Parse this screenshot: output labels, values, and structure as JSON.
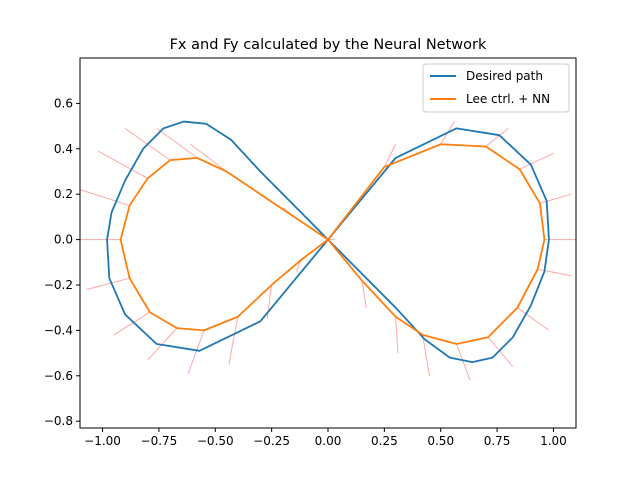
{
  "chart_data": {
    "type": "line",
    "title": "Fx and Fy calculated by the Neural Network",
    "xlabel": "",
    "ylabel": "",
    "xlim": [
      -1.1,
      1.1
    ],
    "ylim": [
      -0.83,
      0.8
    ],
    "xticks": [
      -1.0,
      -0.75,
      -0.5,
      -0.25,
      0.0,
      0.25,
      0.5,
      0.75,
      1.0
    ],
    "xtick_labels": [
      "−1.00",
      "−0.75",
      "−0.50",
      "−0.25",
      "0.00",
      "0.25",
      "0.50",
      "0.75",
      "1.00"
    ],
    "yticks": [
      0.6,
      0.4,
      0.2,
      0.0,
      -0.2,
      -0.4,
      -0.6,
      -0.8
    ],
    "ytick_labels": [
      "0.6",
      "0.4",
      "0.2",
      "0.0",
      "−0.2",
      "−0.4",
      "−0.6",
      "−0.8"
    ],
    "grid": false,
    "legend_position": "top-right",
    "series": [
      {
        "name": "Desired path",
        "color": "#1f77b4",
        "x": [
          0.0,
          0.3,
          0.57,
          0.76,
          0.9,
          0.97,
          0.98,
          0.96,
          0.9,
          0.82,
          0.73,
          0.64,
          0.54,
          0.43,
          0.3,
          0.15,
          0.0,
          -0.15,
          -0.3,
          -0.43,
          -0.54,
          -0.64,
          -0.73,
          -0.82,
          -0.9,
          -0.96,
          -0.98,
          -0.97,
          -0.9,
          -0.76,
          -0.57,
          -0.3,
          0.0
        ],
        "y": [
          0.0,
          0.36,
          0.49,
          0.46,
          0.33,
          0.17,
          0.0,
          -0.14,
          -0.29,
          -0.43,
          -0.52,
          -0.54,
          -0.52,
          -0.44,
          -0.3,
          -0.15,
          0.0,
          0.15,
          0.3,
          0.44,
          0.51,
          0.52,
          0.49,
          0.4,
          0.26,
          0.12,
          0.0,
          -0.17,
          -0.33,
          -0.46,
          -0.49,
          -0.36,
          0.0
        ]
      },
      {
        "name": "Lee ctrl. + NN",
        "color": "#ff7f0e",
        "x": [
          0.0,
          0.25,
          0.5,
          0.7,
          0.85,
          0.94,
          0.96,
          0.93,
          0.84,
          0.71,
          0.57,
          0.42,
          0.3,
          0.15,
          0.0,
          -0.15,
          -0.3,
          -0.45,
          -0.58,
          -0.7,
          -0.8,
          -0.88,
          -0.92,
          -0.88,
          -0.79,
          -0.67,
          -0.55,
          -0.4,
          -0.25,
          -0.12,
          0.0
        ],
        "y": [
          0.0,
          0.32,
          0.42,
          0.41,
          0.31,
          0.16,
          0.0,
          -0.13,
          -0.3,
          -0.43,
          -0.46,
          -0.42,
          -0.34,
          -0.18,
          0.0,
          0.1,
          0.2,
          0.3,
          0.36,
          0.35,
          0.27,
          0.15,
          0.0,
          -0.17,
          -0.32,
          -0.39,
          -0.4,
          -0.34,
          -0.2,
          -0.09,
          0.0
        ]
      }
    ],
    "force_vectors": {
      "color": "#ff0000",
      "description_of_data": "force arrows along the trajectory",
      "x": [
        0.0,
        0.25,
        0.5,
        0.7,
        0.85,
        0.94,
        0.96,
        0.93,
        0.84,
        0.71,
        0.57,
        0.42,
        0.3,
        0.15,
        0.0,
        -0.15,
        -0.3,
        -0.45,
        -0.58,
        -0.7,
        -0.8,
        -0.88,
        -0.92,
        -0.88,
        -0.79,
        -0.67,
        -0.55,
        -0.4,
        -0.25,
        -0.12,
        0.0
      ],
      "y": [
        0.0,
        0.32,
        0.42,
        0.41,
        0.31,
        0.16,
        0.0,
        -0.13,
        -0.3,
        -0.43,
        -0.46,
        -0.42,
        -0.34,
        -0.18,
        0.0,
        0.1,
        0.2,
        0.3,
        0.36,
        0.35,
        0.27,
        0.15,
        0.0,
        -0.17,
        -0.32,
        -0.39,
        -0.4,
        -0.34,
        -0.2,
        -0.09,
        0.0
      ],
      "tip_x": [
        0.02,
        0.3,
        0.56,
        0.8,
        1.0,
        1.08,
        1.1,
        1.08,
        0.98,
        0.82,
        0.63,
        0.45,
        0.31,
        0.17,
        0.02,
        -0.2,
        -0.42,
        -0.61,
        -0.76,
        -0.9,
        -1.02,
        -1.1,
        -1.1,
        -1.07,
        -0.95,
        -0.8,
        -0.62,
        -0.44,
        -0.27,
        -0.14,
        0.03
      ],
      "tip_y": [
        0.02,
        0.42,
        0.52,
        0.49,
        0.38,
        0.2,
        0.0,
        -0.16,
        -0.4,
        -0.56,
        -0.62,
        -0.6,
        -0.5,
        -0.3,
        0.02,
        0.14,
        0.28,
        0.42,
        0.49,
        0.49,
        0.39,
        0.22,
        0.0,
        -0.22,
        -0.42,
        -0.53,
        -0.59,
        -0.55,
        -0.35,
        -0.14,
        0.0
      ]
    }
  }
}
